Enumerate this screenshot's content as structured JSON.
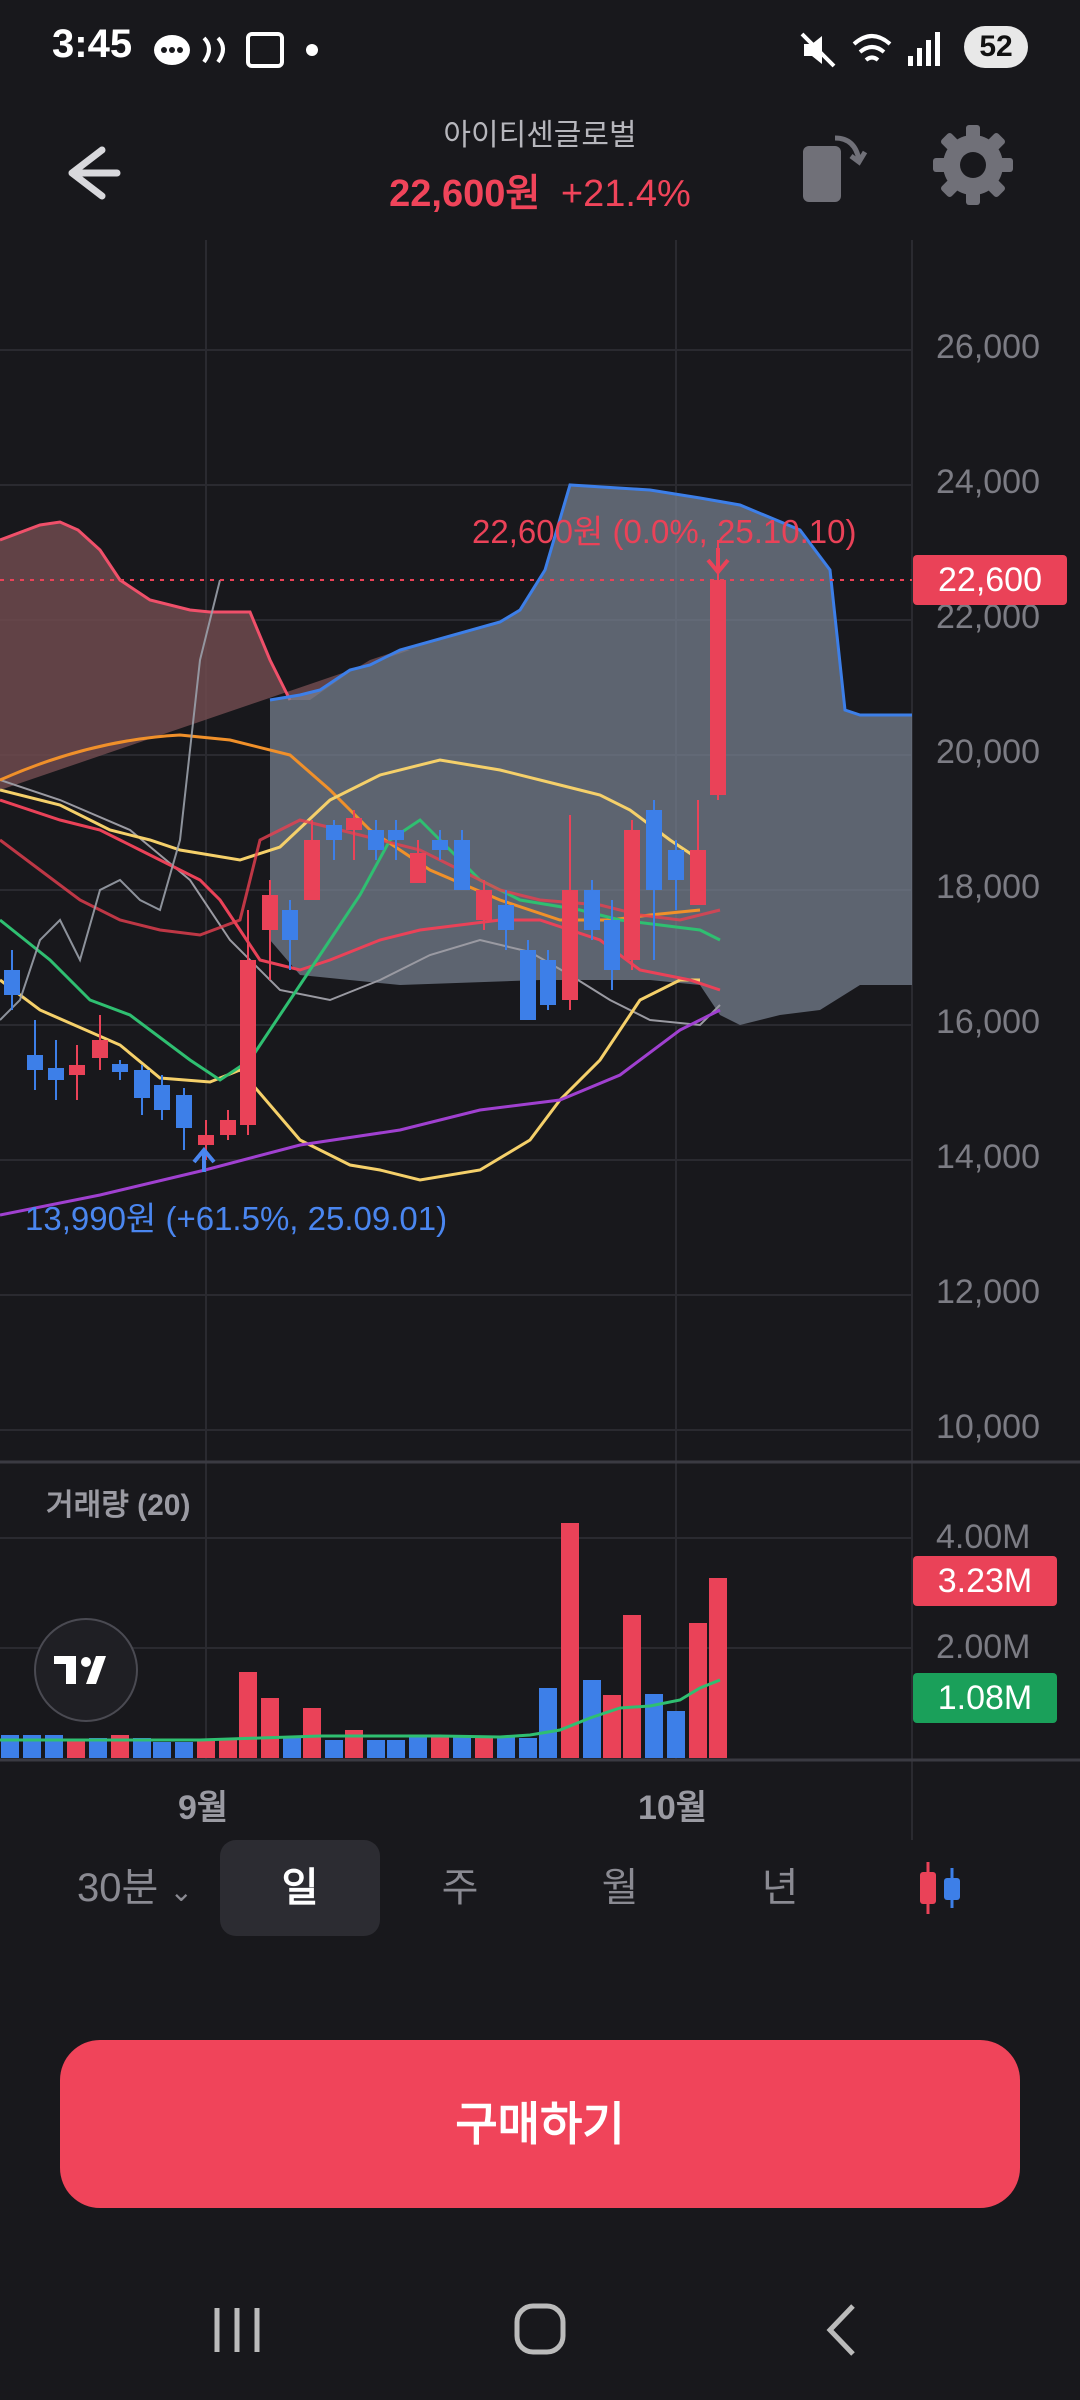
{
  "status": {
    "time": "3:45",
    "battery": "52"
  },
  "header": {
    "stock_name": "아이티센글로벌",
    "price": "22,600원",
    "change": "+21.4%"
  },
  "chart": {
    "price_ticks": [
      "26,000",
      "24,000",
      "22,000",
      "20,000",
      "18,000",
      "16,000",
      "14,000",
      "12,000",
      "10,000"
    ],
    "current_price_badge": "22,600",
    "annotation_high": "22,600원 (0.0%, 25.10.10)",
    "annotation_low": "13,990원 (+61.5%, 25.09.01)",
    "volume_title": "거래량 (20)",
    "volume_ticks": [
      "4.00M",
      "2.00M"
    ],
    "volume_badge_red": "3.23M",
    "volume_badge_green": "1.08M",
    "months": [
      "9월",
      "10월"
    ]
  },
  "periods": {
    "p30": "30분",
    "day": "일",
    "week": "주",
    "month": "월",
    "year": "년"
  },
  "buy_button": "구매하기",
  "colors": {
    "up": "#ea4258",
    "down": "#3d7fe8",
    "background": "#18181c",
    "volume_ma": "#2fbf71"
  }
}
